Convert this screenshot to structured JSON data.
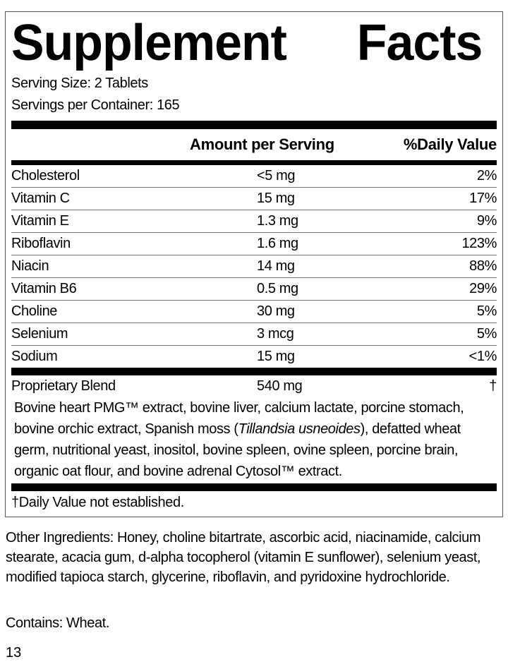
{
  "title_words": [
    "Supplement",
    "Facts"
  ],
  "serving_size": "Serving Size: 2 Tablets",
  "servings_per_container": "Servings per Container: 165",
  "header": {
    "amount": "Amount per Serving",
    "daily_value": "%Daily Value"
  },
  "nutrients": [
    {
      "name": "Cholesterol",
      "amount": "<5 mg",
      "dv": "2%"
    },
    {
      "name": "Vitamin C",
      "amount": "15 mg",
      "dv": "17%"
    },
    {
      "name": "Vitamin E",
      "amount": "1.3 mg",
      "dv": "9%"
    },
    {
      "name": "Riboflavin",
      "amount": "1.6 mg",
      "dv": "123%"
    },
    {
      "name": "Niacin",
      "amount": "14 mg",
      "dv": "88%"
    },
    {
      "name": "Vitamin B6",
      "amount": "0.5 mg",
      "dv": "29%"
    },
    {
      "name": "Choline",
      "amount": "30 mg",
      "dv": "5%"
    },
    {
      "name": "Selenium",
      "amount": "3 mcg",
      "dv": "5%"
    },
    {
      "name": "Sodium",
      "amount": "15 mg",
      "dv": "<1%"
    }
  ],
  "blend": {
    "name": "Proprietary Blend",
    "amount": "540 mg",
    "dv": "†",
    "desc_before": "Bovine heart PMG™ extract, bovine liver, calcium lactate, porcine stomach, bovine orchic extract, Spanish moss (",
    "desc_italic": "Tillandsia usneoides",
    "desc_after": "), defatted wheat germ, nutritional yeast, inositol, bovine spleen, ovine spleen, porcine brain, organic oat flour, and bovine adrenal Cytosol™ extract."
  },
  "footnote": "†Daily Value not established.",
  "other_ingredients": "Other Ingredients: Honey, choline bitartrate, ascorbic acid, niacinamide, calcium stearate, acacia gum, d-alpha tocopherol (vitamin E sunflower), selenium yeast, modified tapioca starch, glycerine, riboflavin, and pyridoxine hydrochloride.",
  "contains": "Contains: Wheat.",
  "page_number": "13"
}
